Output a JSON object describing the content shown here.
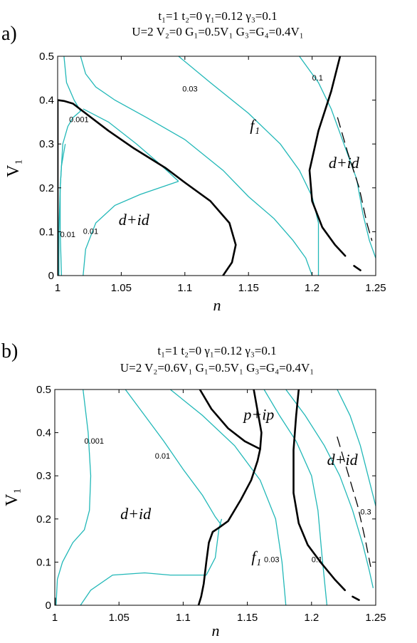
{
  "colors": {
    "contour": "#22b8b8",
    "boundary": "#000000"
  },
  "chart_data": [
    {
      "type": "line",
      "panel_label": "a)",
      "params_line1": "t₁=1  t₂=0  γ₁=0.12  γ₃=0.1",
      "params_line2": "U=2  V₂=0  G₁=0.5V₁  G₃=G₄=0.4V₁",
      "xlabel": "n",
      "ylabel": "V₁",
      "xlim": [
        1,
        1.25
      ],
      "ylim": [
        0,
        0.5
      ],
      "xticks": [
        "1",
        "1.05",
        "1.1",
        "1.15",
        "1.2",
        "1.25"
      ],
      "yticks": [
        "0",
        "0.1",
        "0.2",
        "0.3",
        "0.4",
        "0.5"
      ],
      "region_labels": [
        {
          "text": "f₁",
          "x": 1.155,
          "y": 0.33
        },
        {
          "text": "d+id",
          "x": 1.225,
          "y": 0.245
        },
        {
          "text": "d+id",
          "x": 1.06,
          "y": 0.115
        }
      ],
      "contours": [
        {
          "label": "0.001",
          "label_at": [
            1.009,
            0.35
          ],
          "points": [
            [
              1.003,
              0.0
            ],
            [
              1.002,
              0.1
            ],
            [
              1.002,
              0.2
            ],
            [
              1.004,
              0.3
            ],
            [
              1.008,
              0.34
            ],
            [
              1.012,
              0.36
            ],
            [
              1.018,
              0.375
            ],
            [
              1.013,
              0.4
            ],
            [
              1.007,
              0.44
            ],
            [
              1.005,
              0.5
            ]
          ]
        },
        {
          "label": "0.01",
          "label_at": [
            1.002,
            0.088
          ],
          "points": [
            [
              1.001,
              0.0
            ],
            [
              1.001,
              0.1
            ],
            [
              1.002,
              0.2
            ],
            [
              1.003,
              0.25
            ],
            [
              1.006,
              0.3
            ]
          ]
        },
        {
          "label": "0.01",
          "label_at": [
            1.02,
            0.095
          ],
          "points": [
            [
              1.02,
              0.0
            ],
            [
              1.022,
              0.06
            ],
            [
              1.03,
              0.12
            ],
            [
              1.045,
              0.16
            ],
            [
              1.065,
              0.185
            ],
            [
              1.085,
              0.205
            ],
            [
              1.095,
              0.215
            ]
          ]
        },
        {
          "label": "",
          "label_at": null,
          "points": [
            [
              1.02,
              0.38
            ],
            [
              1.04,
              0.35
            ],
            [
              1.062,
              0.3
            ],
            [
              1.08,
              0.255
            ],
            [
              1.095,
              0.215
            ]
          ]
        },
        {
          "label": "",
          "label_at": null,
          "points": [
            [
              1.018,
              0.5
            ],
            [
              1.022,
              0.46
            ],
            [
              1.03,
              0.43
            ],
            [
              1.045,
              0.4
            ],
            [
              1.07,
              0.36
            ],
            [
              1.1,
              0.31
            ],
            [
              1.13,
              0.24
            ],
            [
              1.15,
              0.18
            ],
            [
              1.17,
              0.13
            ],
            [
              1.185,
              0.08
            ],
            [
              1.195,
              0.04
            ],
            [
              1.2,
              0.0
            ]
          ]
        },
        {
          "label": "0.03",
          "label_at": [
            1.098,
            0.42
          ],
          "points": [
            [
              1.095,
              0.5
            ],
            [
              1.12,
              0.44
            ],
            [
              1.15,
              0.37
            ],
            [
              1.175,
              0.3
            ],
            [
              1.19,
              0.24
            ],
            [
              1.2,
              0.18
            ],
            [
              1.205,
              0.12
            ],
            [
              1.205,
              0.0
            ]
          ]
        },
        {
          "label": "0.1",
          "label_at": [
            1.2,
            0.445
          ],
          "points": [
            [
              1.19,
              0.5
            ],
            [
              1.205,
              0.44
            ],
            [
              1.215,
              0.38
            ],
            [
              1.225,
              0.3
            ],
            [
              1.235,
              0.22
            ],
            [
              1.24,
              0.14
            ],
            [
              1.245,
              0.08
            ],
            [
              1.25,
              0.04
            ]
          ]
        }
      ],
      "boundaries": [
        {
          "style": "solid",
          "points": [
            [
              1.0,
              0.4
            ],
            [
              1.005,
              0.398
            ],
            [
              1.012,
              0.392
            ],
            [
              1.022,
              0.37
            ],
            [
              1.04,
              0.33
            ],
            [
              1.06,
              0.29
            ],
            [
              1.085,
              0.245
            ],
            [
              1.1,
              0.212
            ],
            [
              1.12,
              0.17
            ],
            [
              1.135,
              0.12
            ],
            [
              1.14,
              0.07
            ],
            [
              1.137,
              0.03
            ],
            [
              1.13,
              0.0
            ]
          ]
        },
        {
          "style": "solid",
          "points": [
            [
              1.0,
              0.0
            ],
            [
              1.0,
              0.4
            ]
          ]
        },
        {
          "style": "solid",
          "points": [
            [
              1.222,
              0.5
            ],
            [
              1.215,
              0.42
            ],
            [
              1.205,
              0.33
            ],
            [
              1.198,
              0.24
            ],
            [
              1.2,
              0.17
            ],
            [
              1.208,
              0.11
            ],
            [
              1.218,
              0.07
            ],
            [
              1.226,
              0.045
            ]
          ]
        },
        {
          "style": "dashed",
          "points": [
            [
              1.22,
              0.36
            ],
            [
              1.228,
              0.28
            ],
            [
              1.237,
              0.2
            ],
            [
              1.243,
              0.12
            ],
            [
              1.247,
              0.08
            ]
          ]
        },
        {
          "style": "solid",
          "points": [
            [
              1.233,
              0.022
            ],
            [
              1.238,
              0.012
            ]
          ]
        }
      ]
    },
    {
      "type": "line",
      "panel_label": "b)",
      "params_line1": "t₁=1  t₂=0  γ₁=0.12  γ₃=0.1",
      "params_line2": "U=2  V₂=0.6V₁  G₁=0.5V₁  G₃=G₄=0.4V₁",
      "xlabel": "n",
      "ylabel": "V₁",
      "xlim": [
        1,
        1.25
      ],
      "ylim": [
        0,
        0.5
      ],
      "xticks": [
        "1",
        "1.05",
        "1.1",
        "1.15",
        "1.2",
        "1.25"
      ],
      "yticks": [
        "0",
        "0.1",
        "0.2",
        "0.3",
        "0.4",
        "0.5"
      ],
      "region_labels": [
        {
          "text": "p+ip",
          "x": 1.159,
          "y": 0.43
        },
        {
          "text": "d+id",
          "x": 1.063,
          "y": 0.2
        },
        {
          "text": "f₁",
          "x": 1.157,
          "y": 0.1
        },
        {
          "text": "d+id",
          "x": 1.224,
          "y": 0.325
        }
      ],
      "contours": [
        {
          "label": "0.001",
          "label_at": [
            1.023,
            0.375
          ],
          "points": [
            [
              1.001,
              0.0
            ],
            [
              1.002,
              0.06
            ],
            [
              1.006,
              0.1
            ],
            [
              1.014,
              0.145
            ],
            [
              1.023,
              0.175
            ],
            [
              1.027,
              0.22
            ],
            [
              1.028,
              0.3
            ],
            [
              1.026,
              0.4
            ],
            [
              1.022,
              0.5
            ]
          ]
        },
        {
          "label": "0.01",
          "label_at": [
            1.078,
            0.34
          ],
          "points": [
            [
              1.02,
              0.0
            ],
            [
              1.028,
              0.035
            ],
            [
              1.045,
              0.07
            ],
            [
              1.07,
              0.075
            ],
            [
              1.09,
              0.07
            ],
            [
              1.118,
              0.07
            ],
            [
              1.125,
              0.11
            ],
            [
              1.128,
              0.18
            ],
            [
              1.13,
              0.2
            ]
          ]
        },
        {
          "label": "",
          "label_at": null,
          "points": [
            [
              1.055,
              0.5
            ],
            [
              1.07,
              0.44
            ],
            [
              1.085,
              0.38
            ],
            [
              1.1,
              0.315
            ],
            [
              1.115,
              0.255
            ],
            [
              1.125,
              0.205
            ],
            [
              1.13,
              0.185
            ]
          ]
        },
        {
          "label": "0.03",
          "label_at": [
            1.163,
            0.1
          ],
          "points": [
            [
              1.09,
              0.5
            ],
            [
              1.115,
              0.44
            ],
            [
              1.14,
              0.37
            ],
            [
              1.16,
              0.29
            ],
            [
              1.172,
              0.2
            ],
            [
              1.177,
              0.1
            ],
            [
              1.18,
              0.0
            ]
          ]
        },
        {
          "label": "",
          "label_at": null,
          "points": [
            [
              1.163,
              0.5
            ],
            [
              1.175,
              0.44
            ],
            [
              1.188,
              0.38
            ],
            [
              1.2,
              0.3
            ],
            [
              1.205,
              0.22
            ],
            [
              1.208,
              0.12
            ],
            [
              1.212,
              0.0
            ]
          ]
        },
        {
          "label": "0.1",
          "label_at": [
            1.2,
            0.1
          ],
          "points": [
            [
              1.18,
              0.5
            ],
            [
              1.195,
              0.44
            ],
            [
              1.21,
              0.37
            ],
            [
              1.222,
              0.3
            ],
            [
              1.232,
              0.22
            ],
            [
              1.24,
              0.14
            ],
            [
              1.245,
              0.08
            ],
            [
              1.248,
              0.04
            ]
          ]
        },
        {
          "label": "0.3",
          "label_at": [
            1.238,
            0.21
          ],
          "points": [
            [
              1.22,
              0.5
            ],
            [
              1.23,
              0.44
            ],
            [
              1.238,
              0.37
            ],
            [
              1.244,
              0.3
            ],
            [
              1.25,
              0.23
            ]
          ]
        }
      ],
      "boundaries": [
        {
          "style": "solid",
          "points": [
            [
              1.0,
              0.0
            ],
            [
              1.0,
              0.016
            ]
          ]
        },
        {
          "style": "solid",
          "points": [
            [
              1.112,
              0.0
            ],
            [
              1.114,
              0.02
            ],
            [
              1.116,
              0.05
            ],
            [
              1.118,
              0.1
            ],
            [
              1.12,
              0.145
            ],
            [
              1.123,
              0.17
            ],
            [
              1.128,
              0.18
            ],
            [
              1.135,
              0.195
            ],
            [
              1.145,
              0.245
            ],
            [
              1.153,
              0.29
            ],
            [
              1.158,
              0.335
            ],
            [
              1.16,
              0.362
            ],
            [
              1.161,
              0.4
            ],
            [
              1.158,
              0.45
            ],
            [
              1.155,
              0.5
            ]
          ]
        },
        {
          "style": "solid",
          "points": [
            [
              1.113,
              0.5
            ],
            [
              1.122,
              0.455
            ],
            [
              1.135,
              0.41
            ],
            [
              1.148,
              0.38
            ],
            [
              1.16,
              0.362
            ]
          ]
        },
        {
          "style": "solid",
          "points": [
            [
              1.19,
              0.5
            ],
            [
              1.188,
              0.44
            ],
            [
              1.186,
              0.36
            ],
            [
              1.186,
              0.26
            ],
            [
              1.19,
              0.19
            ],
            [
              1.197,
              0.14
            ],
            [
              1.207,
              0.1
            ],
            [
              1.218,
              0.06
            ],
            [
              1.226,
              0.035
            ]
          ]
        },
        {
          "style": "dashed",
          "points": [
            [
              1.22,
              0.39
            ],
            [
              1.228,
              0.31
            ],
            [
              1.236,
              0.23
            ],
            [
              1.242,
              0.15
            ],
            [
              1.246,
              0.09
            ]
          ]
        },
        {
          "style": "solid",
          "points": [
            [
              1.232,
              0.02
            ],
            [
              1.237,
              0.012
            ]
          ]
        }
      ]
    }
  ]
}
